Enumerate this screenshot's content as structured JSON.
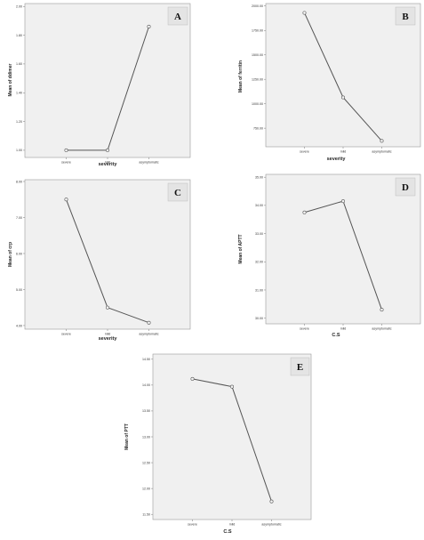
{
  "chart_data": [
    {
      "id": "A",
      "type": "line",
      "panel_label": "A",
      "categories": [
        "severe",
        "mild",
        "asymptomatic"
      ],
      "values": [
        1.0,
        1.0,
        1.86
      ],
      "xlabel": "severity",
      "ylabel": "Mean of ddimer",
      "ylim": [
        0.95,
        2.02
      ],
      "yticks": [
        1.0,
        1.2,
        1.4,
        1.6,
        1.8,
        2.0
      ],
      "ytick_labels": [
        "1.00",
        "1.20",
        "1.40",
        "1.60",
        "1.80",
        "2.00"
      ],
      "line_color": "#555555"
    },
    {
      "id": "B",
      "type": "line",
      "panel_label": "B",
      "categories": [
        "severe",
        "mild",
        "asymptomatic"
      ],
      "values": [
        1930,
        1065,
        620
      ],
      "xlabel": "severity",
      "ylabel": "Mean of ferritin",
      "ylim": [
        560,
        2025
      ],
      "yticks": [
        750,
        1000,
        1250,
        1500,
        1750,
        2000
      ],
      "ytick_labels": [
        "750.00",
        "1000.00",
        "1250.00",
        "1500.00",
        "1750.00",
        "2000.00"
      ],
      "line_color": "#555555"
    },
    {
      "id": "C",
      "type": "line",
      "panel_label": "C",
      "categories": [
        "severe",
        "mild",
        "asymptomatic"
      ],
      "values": [
        7.5,
        4.5,
        4.08
      ],
      "xlabel": "severity",
      "ylabel": "Mean of crp",
      "ylim": [
        3.9,
        8.05
      ],
      "yticks": [
        4.0,
        5.0,
        6.0,
        7.0,
        8.0
      ],
      "ytick_labels": [
        "4.00",
        "5.00",
        "6.00",
        "7.00",
        "8.00"
      ],
      "line_color": "#555555"
    },
    {
      "id": "D",
      "type": "line",
      "panel_label": "D",
      "categories": [
        "severe",
        "mild",
        "asymptomatic"
      ],
      "values": [
        33.75,
        34.15,
        30.3
      ],
      "xlabel": "C.S",
      "ylabel": "Mean of APTT",
      "ylim": [
        29.8,
        35.1
      ],
      "yticks": [
        30.0,
        31.0,
        32.0,
        33.0,
        34.0,
        35.0
      ],
      "ytick_labels": [
        "30.00",
        "31.00",
        "32.00",
        "33.00",
        "34.00",
        "35.00"
      ],
      "line_color": "#555555"
    },
    {
      "id": "E",
      "type": "line",
      "panel_label": "E",
      "categories": [
        "severe",
        "mild",
        "asymptomatic"
      ],
      "values": [
        14.12,
        13.97,
        11.75
      ],
      "xlabel": "C.S",
      "ylabel": "Mean of PTT",
      "ylim": [
        11.4,
        14.6
      ],
      "yticks": [
        11.5,
        12.0,
        12.5,
        13.0,
        13.5,
        14.0,
        14.5
      ],
      "ytick_labels": [
        "11.50",
        "12.00",
        "12.50",
        "13.00",
        "13.50",
        "14.00",
        "14.50"
      ],
      "line_color": "#555555"
    }
  ],
  "tick_labels": {
    "A": [
      "severe",
      "mild",
      "asymptomatic"
    ],
    "B": [
      "severe",
      "mild",
      "asymptomatic"
    ],
    "C": [
      "severe",
      "mild",
      "asymptomatic"
    ],
    "D": [
      "severe",
      "mild",
      "asymptomatic"
    ],
    "E": [
      "severe",
      "mild",
      "asymptomatic"
    ]
  }
}
